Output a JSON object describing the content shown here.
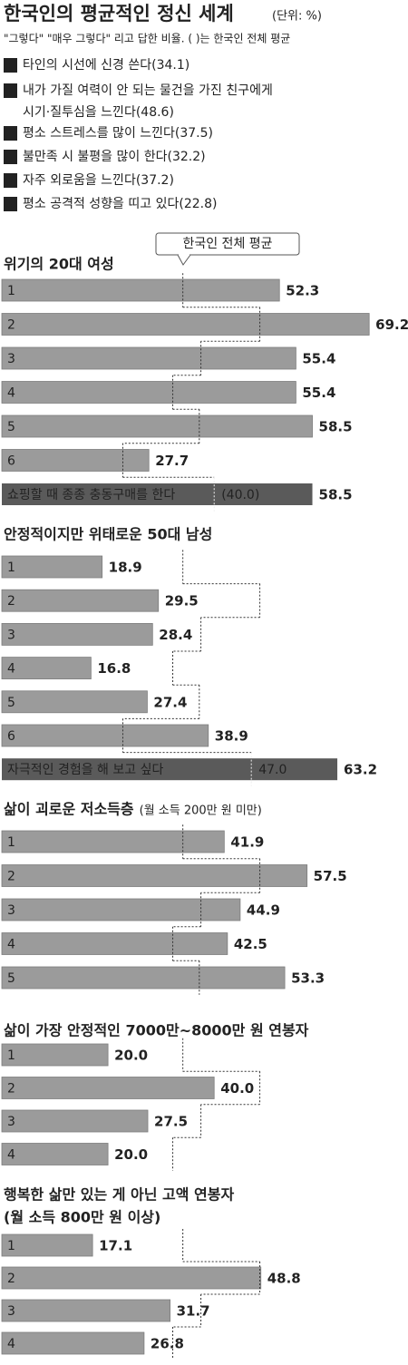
{
  "chart_data": {
    "type": "bar",
    "title": "한국인의 평균적인 정신 세계",
    "unit": "(단위: %)",
    "subtitle": "\"그렇다\" \"매우 그렇다\" 리고 답한 비율. ( )는 한국인 전체 평균",
    "legend": [
      {
        "number": "1",
        "lines": [
          "타인의 시선에 신경 쓴다(34.1)"
        ]
      },
      {
        "number": "2",
        "lines": [
          "내가 가질 여력이 안 되는 물건을 가진 친구에게",
          "시기·질투심을 느낀다(48.6)"
        ]
      },
      {
        "number": "3",
        "lines": [
          "평소 스트레스를 많이 느낀다(37.5)"
        ]
      },
      {
        "number": "4",
        "lines": [
          "불만족 시 불평을 많이 한다(32.2)"
        ]
      },
      {
        "number": "5",
        "lines": [
          "자주 외로움을 느낀다(37.2)"
        ]
      },
      {
        "number": "6",
        "lines": [
          "평소 공격적 성향을 띠고 있다(22.8)"
        ]
      }
    ],
    "averages": [
      34.1,
      48.6,
      37.5,
      32.2,
      37.2,
      22.8
    ],
    "average_callout": "한국인 전체 평균",
    "xlim": [
      0,
      76
    ],
    "color": "#9b9b9b",
    "highlight_color": "#5a5a5a",
    "panels": [
      {
        "title": "위기의 20대 여성",
        "categories": [
          "1",
          "2",
          "3",
          "4",
          "5",
          "6"
        ],
        "values": [
          52.3,
          69.2,
          55.4,
          55.4,
          58.5,
          27.7
        ],
        "value_labels": [
          "52.3",
          "69.2",
          "55.4",
          "55.4",
          "58.5",
          "27.7"
        ],
        "extra": {
          "label": "쇼핑할 때 종종 충동구매를 한다",
          "value": 58.5,
          "value_label": "58.5",
          "average": 40.0,
          "average_label": "(40.0)"
        }
      },
      {
        "title": "안정적이지만 위태로운 50대 남성",
        "categories": [
          "1",
          "2",
          "3",
          "4",
          "5",
          "6"
        ],
        "values": [
          18.9,
          29.5,
          28.4,
          16.8,
          27.4,
          38.9
        ],
        "value_labels": [
          "18.9",
          "29.5",
          "28.4",
          "16.8",
          "27.4",
          "38.9"
        ],
        "extra": {
          "label": "자극적인 경험을 해 보고 싶다",
          "value": 63.2,
          "value_label": "63.2",
          "average": 47.0,
          "average_label": "47.0"
        }
      },
      {
        "title": "삶이 괴로운 저소득층",
        "subtitle": "(월 소득 200만 원 미만)",
        "categories": [
          "1",
          "2",
          "3",
          "4",
          "5"
        ],
        "values": [
          41.9,
          57.5,
          44.9,
          42.5,
          53.3
        ],
        "value_labels": [
          "41.9",
          "57.5",
          "44.9",
          "42.5",
          "53.3"
        ]
      },
      {
        "title": "삶이 가장 안정적인 7000만~8000만 원 연봉자",
        "categories": [
          "1",
          "2",
          "3",
          "4"
        ],
        "values": [
          20.0,
          40.0,
          27.5,
          20.0
        ],
        "value_labels": [
          "20.0",
          "40.0",
          "27.5",
          "20.0"
        ]
      },
      {
        "title": "행복한 삶만 있는 게 아닌 고액 연봉자",
        "subtitle": "(월 소득 800만 원 이상)",
        "categories": [
          "1",
          "2",
          "3",
          "4"
        ],
        "values": [
          17.1,
          48.8,
          31.7,
          26.8
        ],
        "value_labels": [
          "17.1",
          "48.8",
          "31.7",
          "26.8"
        ]
      }
    ]
  }
}
